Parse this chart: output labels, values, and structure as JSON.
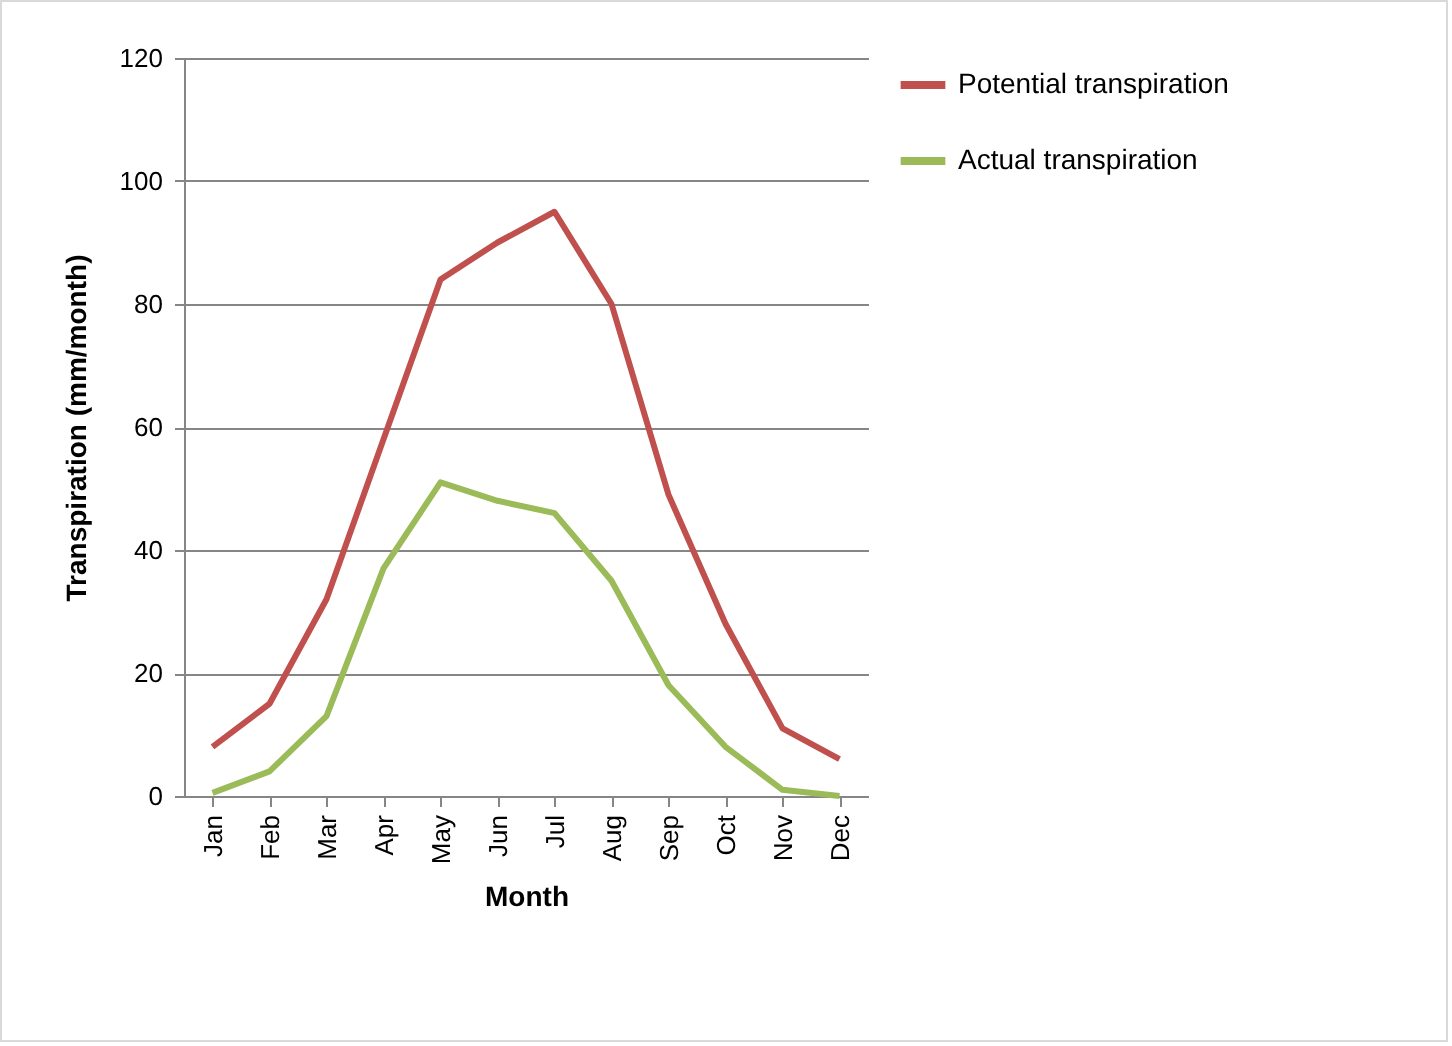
{
  "chart_data": {
    "type": "line",
    "xlabel": "Month",
    "ylabel": "Transpiration  (mm/month)",
    "categories": [
      "Jan",
      "Feb",
      "Mar",
      "Apr",
      "May",
      "Jun",
      "Jul",
      "Aug",
      "Sep",
      "Oct",
      "Nov",
      "Dec"
    ],
    "series": [
      {
        "name": "Potential transpiration",
        "color": "#c0504d",
        "values": [
          8,
          15,
          32,
          58,
          84,
          90,
          95,
          80,
          49,
          28,
          11,
          6
        ]
      },
      {
        "name": "Actual transpiration",
        "color": "#9bbb59",
        "values": [
          0.5,
          4,
          13,
          37,
          51,
          48,
          46,
          35,
          18,
          8,
          1,
          0
        ]
      }
    ],
    "ylim": [
      0,
      120
    ],
    "yticks": [
      0,
      20,
      40,
      60,
      80,
      100,
      120
    ],
    "grid": "y",
    "legend": "right",
    "marker": "none",
    "line_style": "solid"
  }
}
